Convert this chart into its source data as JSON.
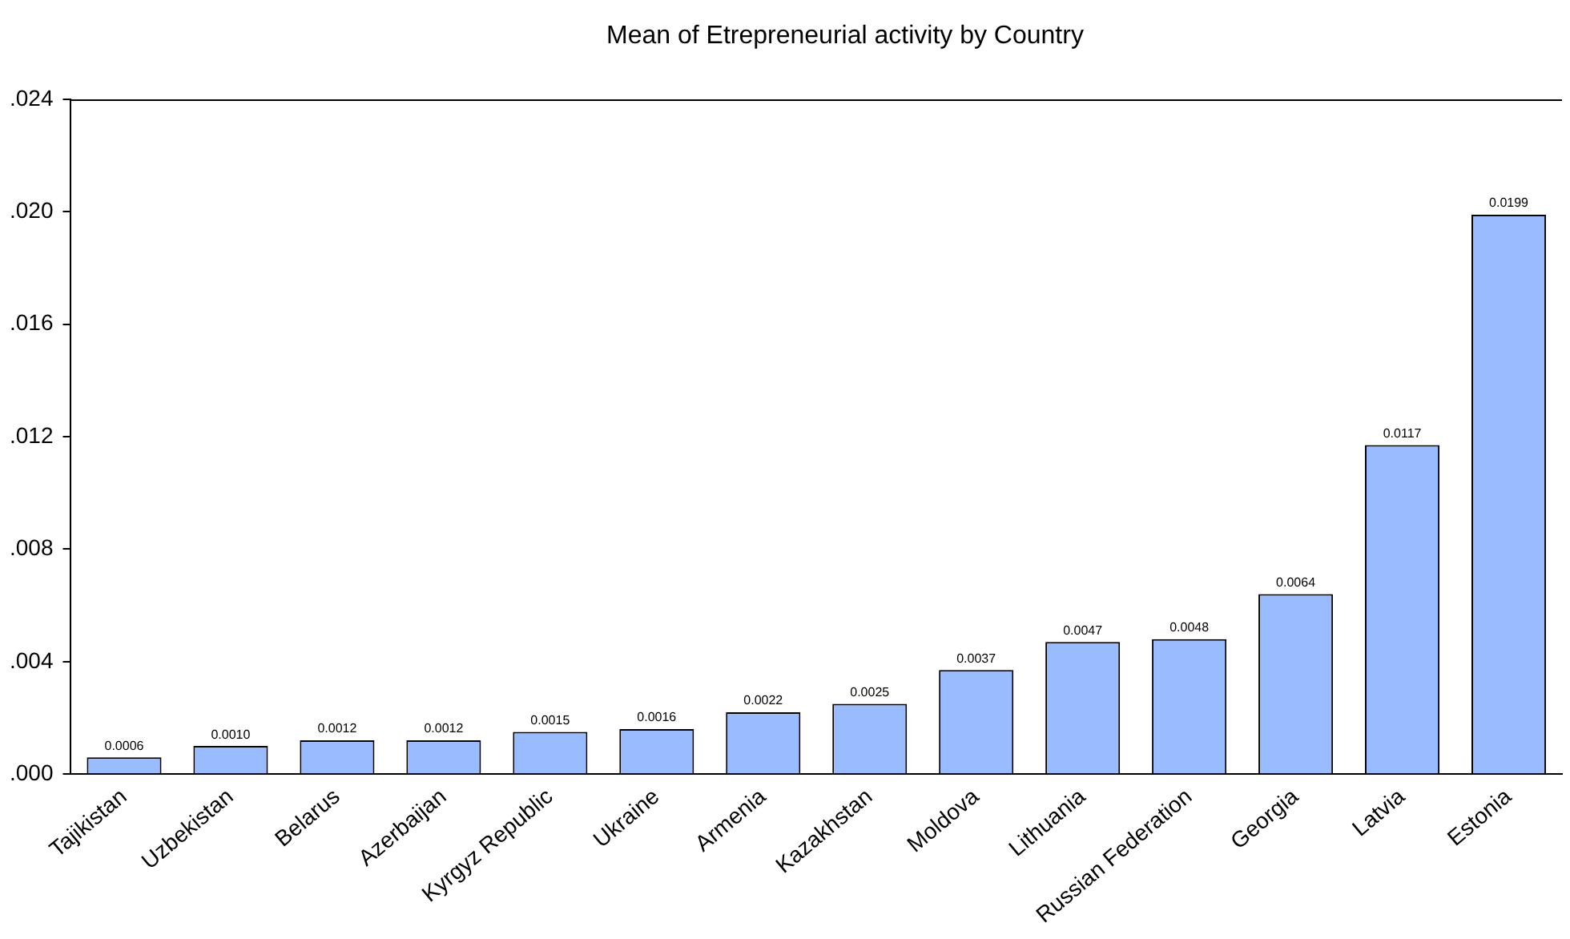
{
  "chart_data": {
    "type": "bar",
    "title": "Mean of Etrepreneurial activity by Country",
    "categories": [
      "Tajikistan",
      "Uzbekistan",
      "Belarus",
      "Azerbaijan",
      "Kyrgyz Republic",
      "Ukraine",
      "Armenia",
      "Kazakhstan",
      "Moldova",
      "Lithuania",
      "Russian Federation",
      "Georgia",
      "Latvia",
      "Estonia"
    ],
    "values": [
      0.0006,
      0.001,
      0.0012,
      0.0012,
      0.0015,
      0.0016,
      0.0022,
      0.0025,
      0.0037,
      0.0047,
      0.0048,
      0.0064,
      0.0117,
      0.0199
    ],
    "value_labels": [
      "0.0006",
      "0.0010",
      "0.0012",
      "0.0012",
      "0.0015",
      "0.0016",
      "0.0022",
      "0.0025",
      "0.0037",
      "0.0047",
      "0.0048",
      "0.0064",
      "0.0117",
      "0.0199"
    ],
    "color": "#99bbff",
    "ylim": [
      0,
      0.024
    ],
    "yticks": [
      {
        "value": 0,
        "label": ".000"
      },
      {
        "value": 0.004,
        "label": ".004"
      },
      {
        "value": 0.008,
        "label": ".008"
      },
      {
        "value": 0.012,
        "label": ".012"
      },
      {
        "value": 0.016,
        "label": ".016"
      },
      {
        "value": 0.02,
        "label": ".020"
      },
      {
        "value": 0.024,
        "label": ".024"
      }
    ],
    "grid": false,
    "legend": false
  }
}
